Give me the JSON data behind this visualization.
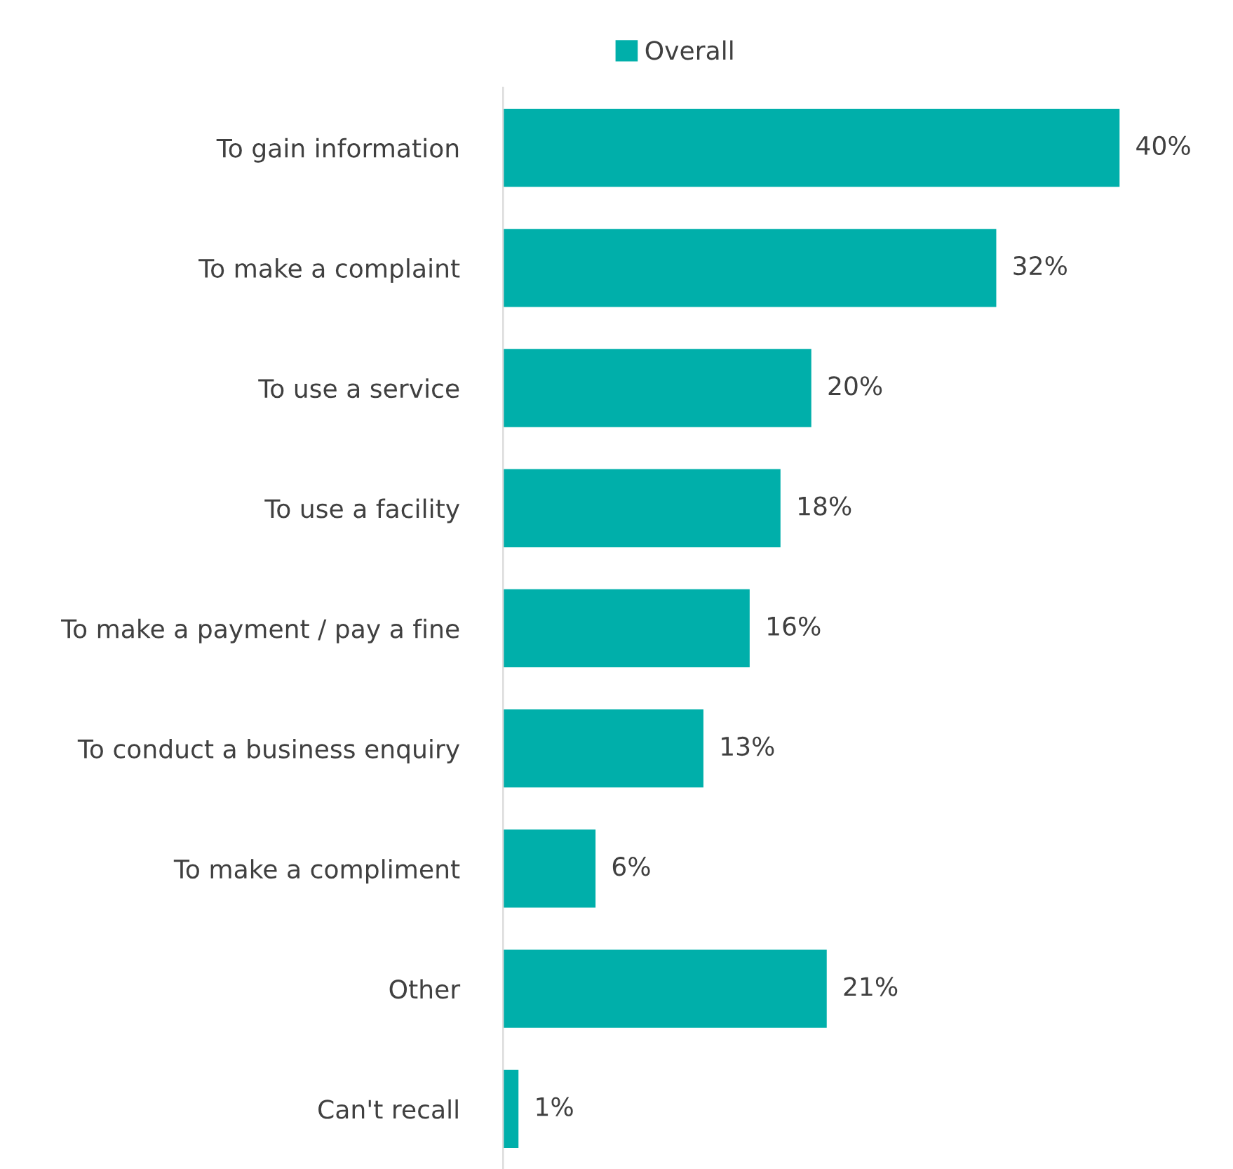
{
  "chart_data": {
    "type": "bar",
    "orientation": "horizontal",
    "categories": [
      "To gain information",
      "To make a complaint",
      "To use a service",
      "To use a facility",
      "To make a payment / pay a fine",
      "To conduct a business enquiry",
      "To make a compliment",
      "Other",
      "Can't recall"
    ],
    "series": [
      {
        "name": "Overall",
        "color": "#00afaa",
        "values": [
          40,
          32,
          20,
          18,
          16,
          13,
          6,
          21,
          1
        ],
        "value_labels": [
          "40%",
          "32%",
          "20%",
          "18%",
          "16%",
          "13%",
          "6%",
          "21%",
          "1%"
        ]
      }
    ],
    "legend": "top",
    "grid": false
  }
}
